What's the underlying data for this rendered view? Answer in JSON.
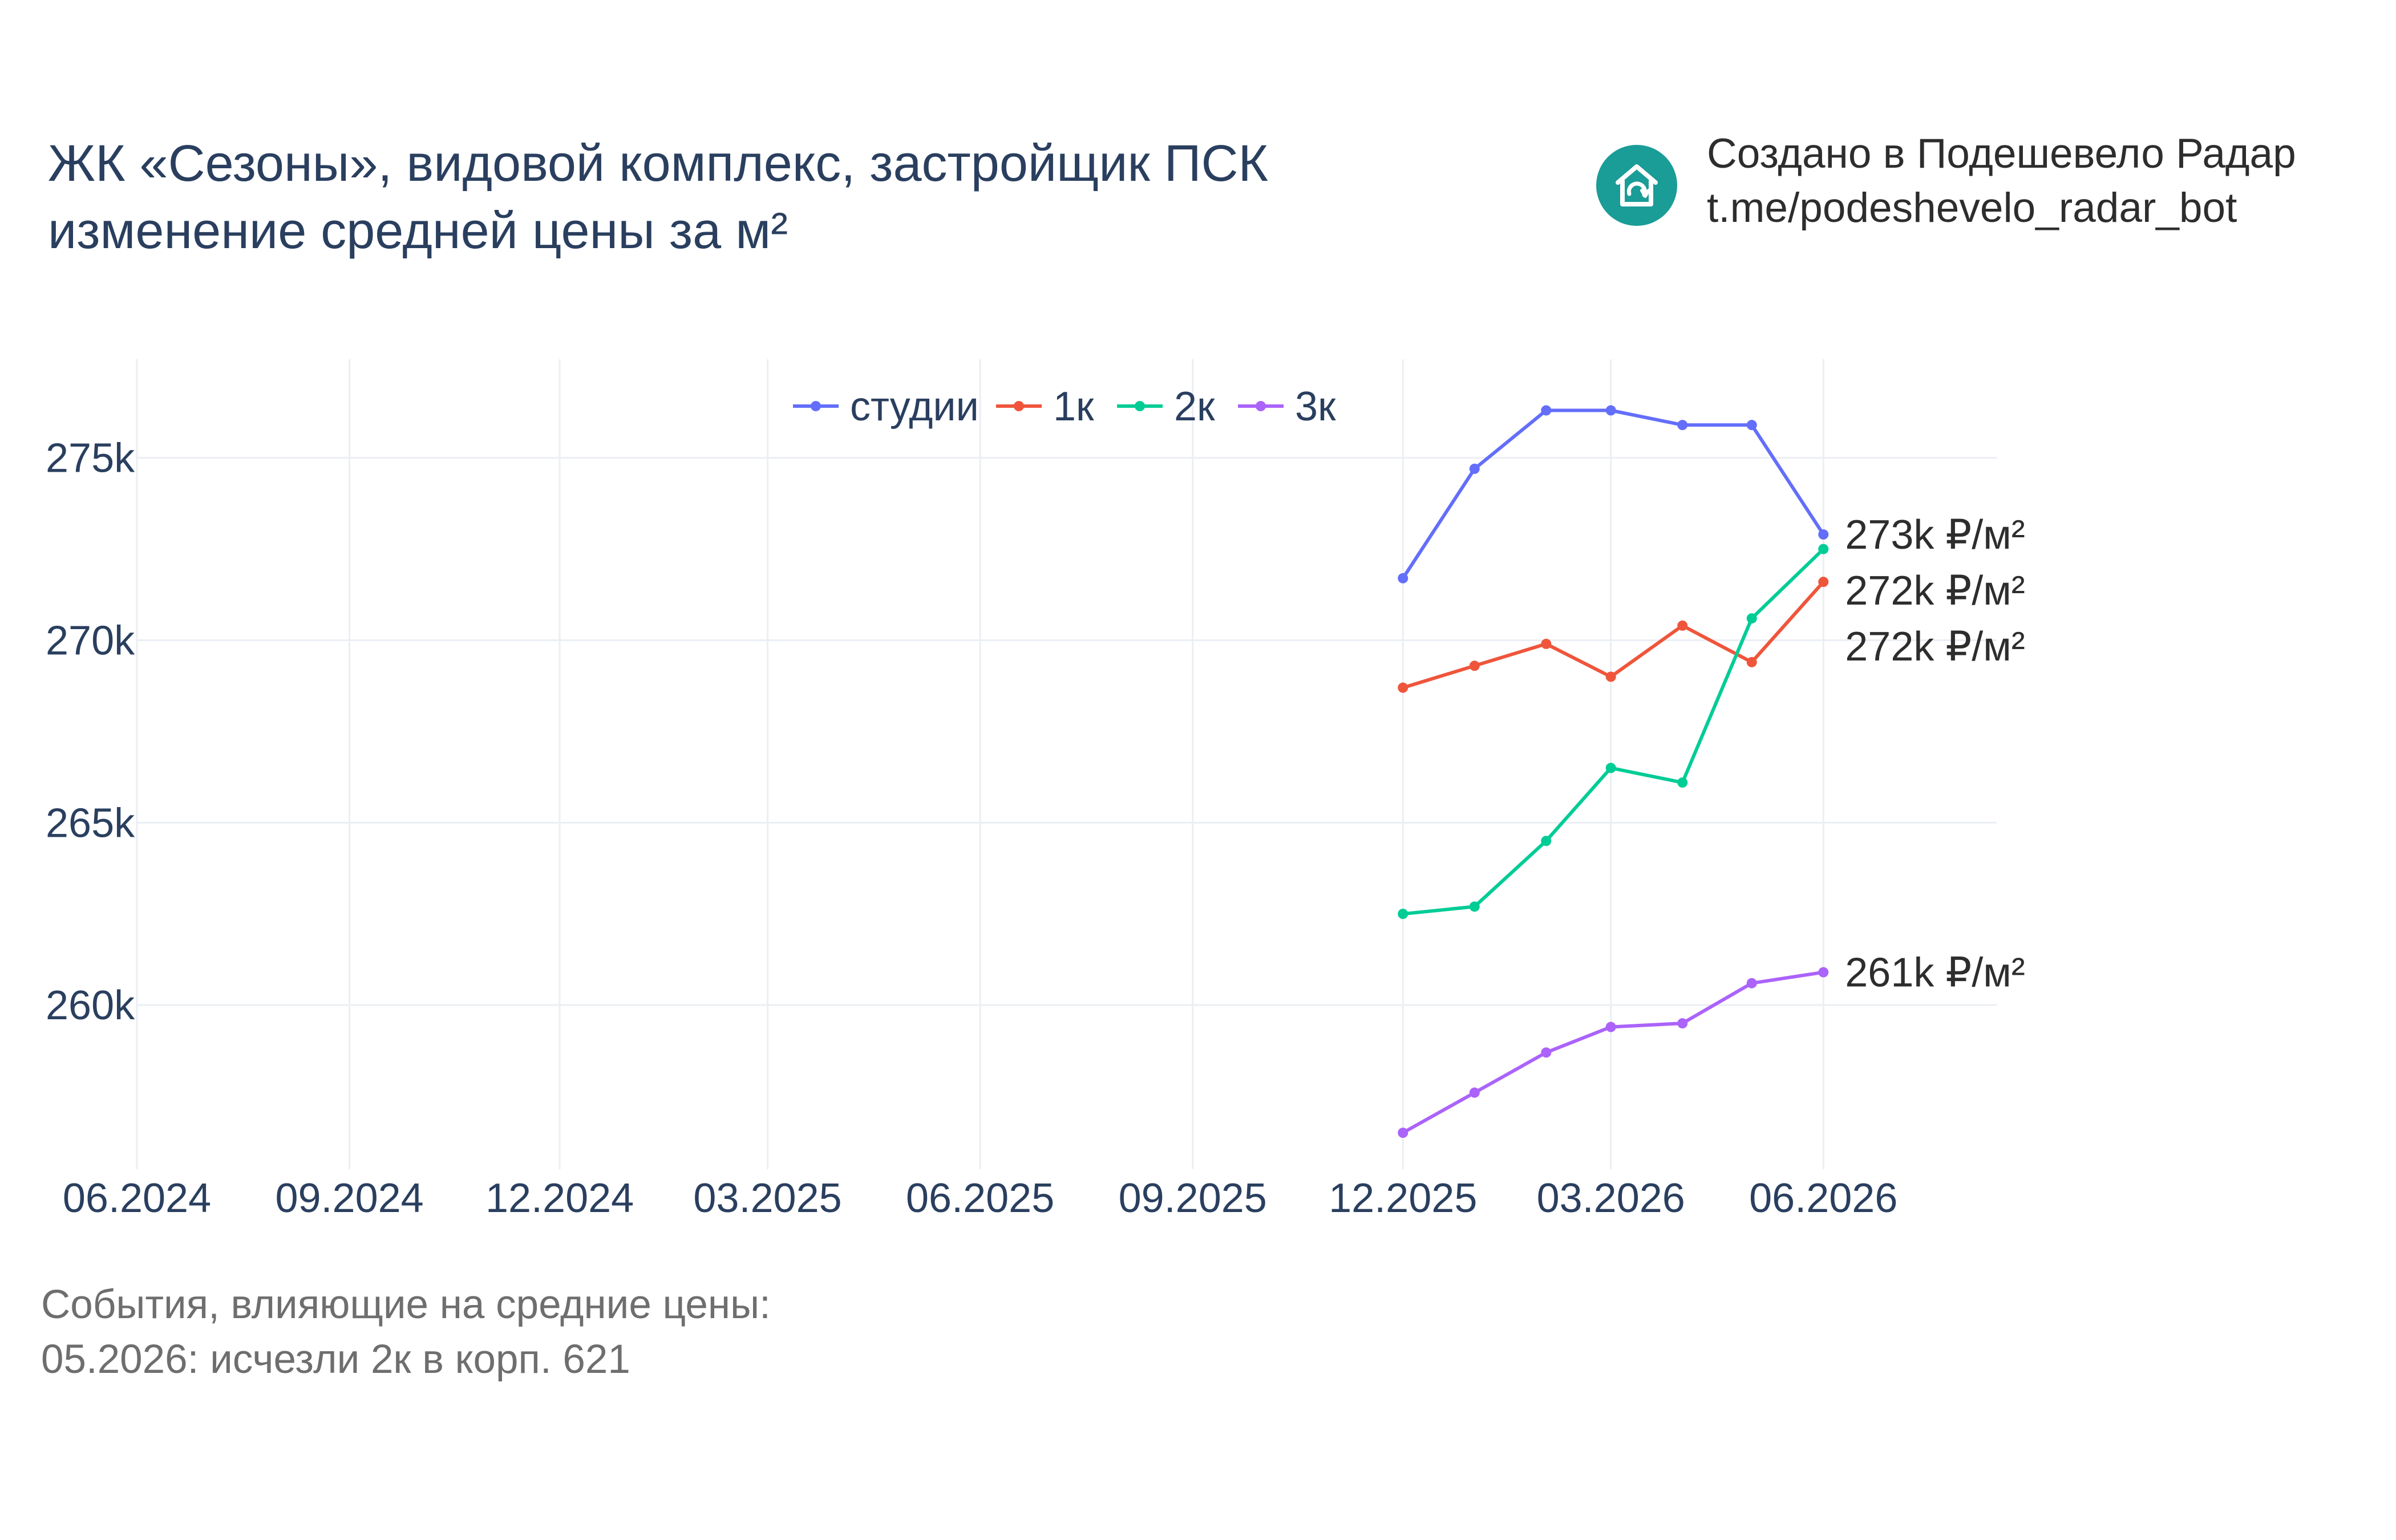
{
  "header": {
    "title_line1": "ЖК «Сезоны», видовой комплекс, застройщик ПСК",
    "title_line2": "изменение средней цены за м²"
  },
  "brand": {
    "line1": "Создано в Подешевело Радар",
    "line2": "t.me/podeshevelo_radar_bot",
    "logo_icon": "house-refresh-icon",
    "logo_color": "#1a9c97"
  },
  "events": {
    "heading": "События, влияющие на средние цены:",
    "items": [
      "05.2026: исчезли 2к в корп. 621"
    ]
  },
  "chart_data": {
    "type": "line",
    "x_ticks": [
      "06.2024",
      "09.2024",
      "12.2024",
      "03.2025",
      "06.2025",
      "09.2025",
      "12.2025",
      "03.2026",
      "06.2026"
    ],
    "y_ticks": [
      {
        "value": 260000,
        "label": "260k"
      },
      {
        "value": 265000,
        "label": "265k"
      },
      {
        "value": 270000,
        "label": "270k"
      },
      {
        "value": 275000,
        "label": "275k"
      }
    ],
    "xlim": [
      "2024-06-01",
      "2026-08-15"
    ],
    "ylim": [
      255500,
      277700
    ],
    "grid": true,
    "legend_position": "top-center",
    "x": [
      "2025-12-01",
      "2026-01-01",
      "2026-02-01",
      "2026-03-01",
      "2026-04-01",
      "2026-05-01",
      "2026-06-01"
    ],
    "series": [
      {
        "name": "студии",
        "color": "#636efa",
        "values": [
          271700,
          274700,
          276300,
          276300,
          275900,
          275900,
          272900
        ],
        "end_label": "273k ₽/м²"
      },
      {
        "name": "1к",
        "color": "#ef553b",
        "values": [
          268700,
          269300,
          269900,
          269000,
          270400,
          269400,
          271600
        ],
        "end_label": "272k ₽/м²"
      },
      {
        "name": "2к",
        "color": "#00cc96",
        "values": [
          262500,
          262700,
          264500,
          266500,
          266100,
          270600,
          272500
        ],
        "end_label": "272k ₽/м²"
      },
      {
        "name": "3к",
        "color": "#ab63fa",
        "values": [
          256500,
          257600,
          258700,
          259400,
          259500,
          260600,
          260900
        ],
        "end_label": "261k ₽/м²"
      }
    ]
  }
}
